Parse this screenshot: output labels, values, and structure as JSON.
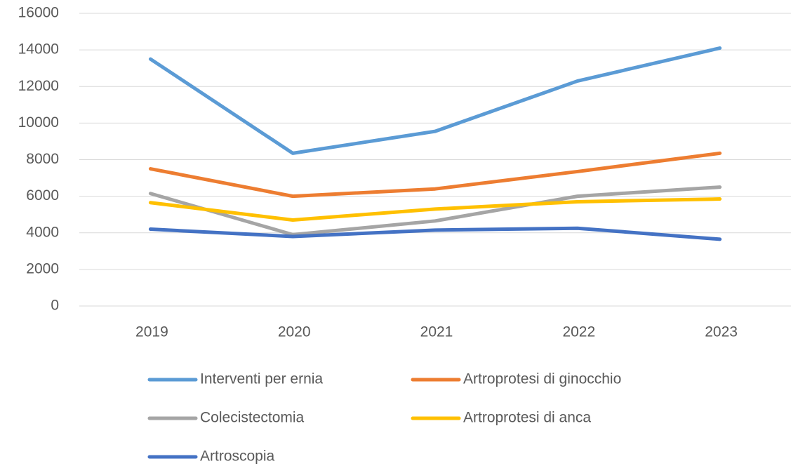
{
  "chart_data": {
    "type": "line",
    "categories": [
      "2019",
      "2020",
      "2021",
      "2022",
      "2023"
    ],
    "series": [
      {
        "name": "Interventi per ernia",
        "color": "#5b9bd5",
        "values": [
          13500,
          8350,
          9550,
          12300,
          14100
        ]
      },
      {
        "name": "Artroprotesi di ginocchio",
        "color": "#ed7d31",
        "values": [
          7500,
          6000,
          6400,
          7350,
          8350
        ]
      },
      {
        "name": "Colecistectomia",
        "color": "#a5a5a5",
        "values": [
          6150,
          3900,
          4650,
          6000,
          6500
        ]
      },
      {
        "name": "Artroprotesi di anca",
        "color": "#ffc000",
        "values": [
          5650,
          4700,
          5300,
          5700,
          5850
        ]
      },
      {
        "name": "Artroscopia",
        "color": "#4472c4",
        "values": [
          4200,
          3800,
          4150,
          4250,
          3650
        ]
      }
    ],
    "ylim": [
      0,
      16000
    ],
    "yticks": [
      0,
      2000,
      4000,
      6000,
      8000,
      10000,
      12000,
      14000,
      16000
    ],
    "grid": true,
    "legend": "bottom"
  }
}
